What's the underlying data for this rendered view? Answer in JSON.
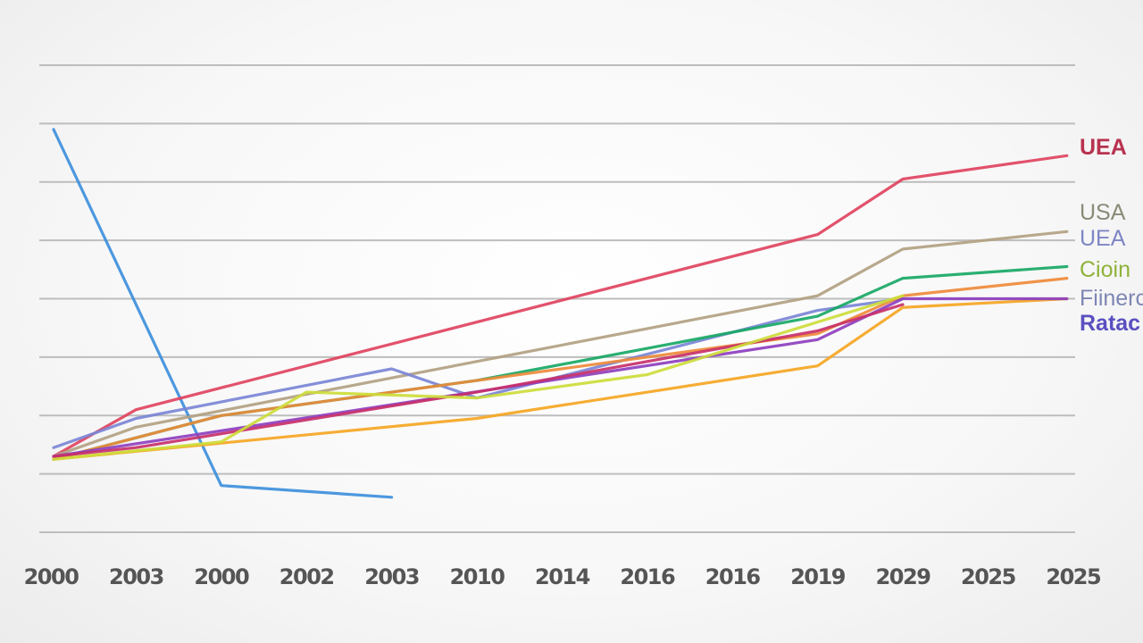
{
  "chart_data": {
    "type": "line",
    "title": "",
    "xlabel": "",
    "ylabel": "",
    "categories": [
      "2000",
      "2003",
      "2000",
      "2002",
      "2003",
      "2010",
      "2014",
      "2016",
      "2016",
      "2019",
      "2029",
      "2025",
      "2025"
    ],
    "ylim": [
      0,
      8
    ],
    "grid": true,
    "y_gridlines": 9,
    "series": [
      {
        "color": "#3d8fdc",
        "values": [
          6.9,
          null,
          0.8,
          null,
          0.6,
          null,
          null,
          null,
          null,
          null,
          null,
          null,
          null
        ]
      },
      {
        "color": "#e0435f",
        "values": [
          1.3,
          2.1,
          null,
          null,
          null,
          null,
          null,
          null,
          null,
          5.1,
          6.05,
          null,
          6.45
        ]
      },
      {
        "color": "#b2a182",
        "values": [
          1.3,
          1.8,
          null,
          null,
          null,
          null,
          null,
          null,
          null,
          4.05,
          4.85,
          null,
          5.15
        ]
      },
      {
        "color": "#7b86d6",
        "values": [
          1.45,
          1.95,
          null,
          null,
          2.8,
          2.3,
          null,
          null,
          null,
          3.8,
          4.0,
          null,
          null
        ]
      },
      {
        "color": "#18a865",
        "values": [
          1.25,
          null,
          2.0,
          null,
          null,
          2.6,
          null,
          null,
          null,
          3.7,
          4.35,
          null,
          4.55
        ]
      },
      {
        "color": "#f5a623",
        "values": [
          1.25,
          null,
          null,
          null,
          null,
          1.95,
          null,
          null,
          null,
          2.85,
          3.85,
          null,
          4.0
        ]
      },
      {
        "color": "#ee8a3a",
        "values": [
          1.25,
          null,
          2.0,
          null,
          null,
          null,
          null,
          null,
          null,
          3.4,
          4.05,
          null,
          4.35
        ]
      },
      {
        "color": "#8e3fbf",
        "values": [
          1.3,
          null,
          null,
          null,
          null,
          null,
          null,
          null,
          null,
          3.3,
          4.0,
          null,
          4.0
        ]
      },
      {
        "color": "#c8306a",
        "values": [
          1.3,
          1.45,
          null,
          null,
          null,
          2.4,
          null,
          null,
          null,
          3.45,
          3.9,
          null,
          null
        ]
      },
      {
        "color": "#cddc3a",
        "values": [
          1.25,
          null,
          1.55,
          2.4,
          null,
          2.3,
          null,
          2.7,
          null,
          3.6,
          4.05,
          null,
          null
        ]
      }
    ],
    "labels": [
      {
        "text": "UEA",
        "color": "#b8324f"
      },
      {
        "text": "USA",
        "color": "#8a8a78"
      },
      {
        "text": "UEA",
        "color": "#7f86c4"
      },
      {
        "text": "Cioin",
        "color": "#8fb23a"
      },
      {
        "text": "Fiinerc",
        "color": "#7f86b4"
      },
      {
        "text": "Ratac",
        "color": "#5a4fc0"
      }
    ]
  }
}
